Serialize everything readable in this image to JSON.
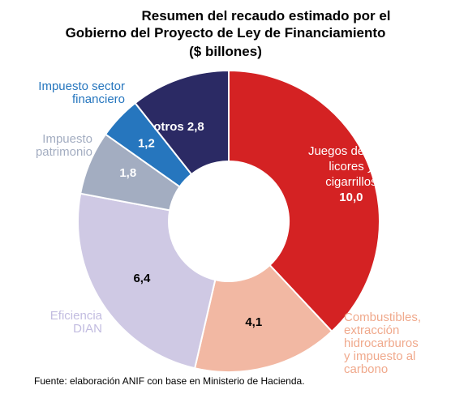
{
  "chart_data": {
    "type": "pie",
    "style": "donut",
    "title_lines": [
      "Resumen del recaudo estimado por el",
      "Gobierno del Proyecto de Ley de Financiamiento",
      "($ billones)"
    ],
    "slices": [
      {
        "name": "Juegos de azar, licores y cigarrillos",
        "value": 10.0,
        "value_label": "10,0",
        "color": "#d42223"
      },
      {
        "name": "Combustibles, extracción hidrocarburos y impuesto al carbono",
        "value": 4.1,
        "value_label": "4,1",
        "color": "#f2b8a3"
      },
      {
        "name": "Eficiencia DIAN",
        "value": 6.4,
        "value_label": "6,4",
        "color": "#cfc9e4"
      },
      {
        "name": "Impuesto patrimonio",
        "value": 1.8,
        "value_label": "1,8",
        "color": "#a3adc1"
      },
      {
        "name": "Impuesto sector financiero",
        "value": 1.2,
        "value_label": "1,2",
        "color": "#2676be"
      },
      {
        "name": "otros",
        "value": 2.8,
        "value_label": "otros 2,8",
        "color": "#2b2a64"
      }
    ],
    "outer_labels": [
      {
        "lines": [
          "Combustibles,",
          "extracción",
          "hidrocarburos",
          "y impuesto al",
          "carbono"
        ],
        "color": "#f0a98c"
      },
      {
        "lines": [
          "Eficiencia",
          "DIAN"
        ],
        "color": "#c2bce0"
      },
      {
        "lines": [
          "Impuesto",
          "patrimonio"
        ],
        "color": "#a3adc1"
      },
      {
        "lines": [
          "Impuesto sector",
          "financiero"
        ],
        "color": "#2676be"
      }
    ],
    "inner_label_juegos": [
      "Juegos de azar,",
      "licores y",
      "cigarrillos",
      "10,0"
    ],
    "source": "Fuente: elaboración ANIF con base en Ministerio de Hacienda."
  }
}
